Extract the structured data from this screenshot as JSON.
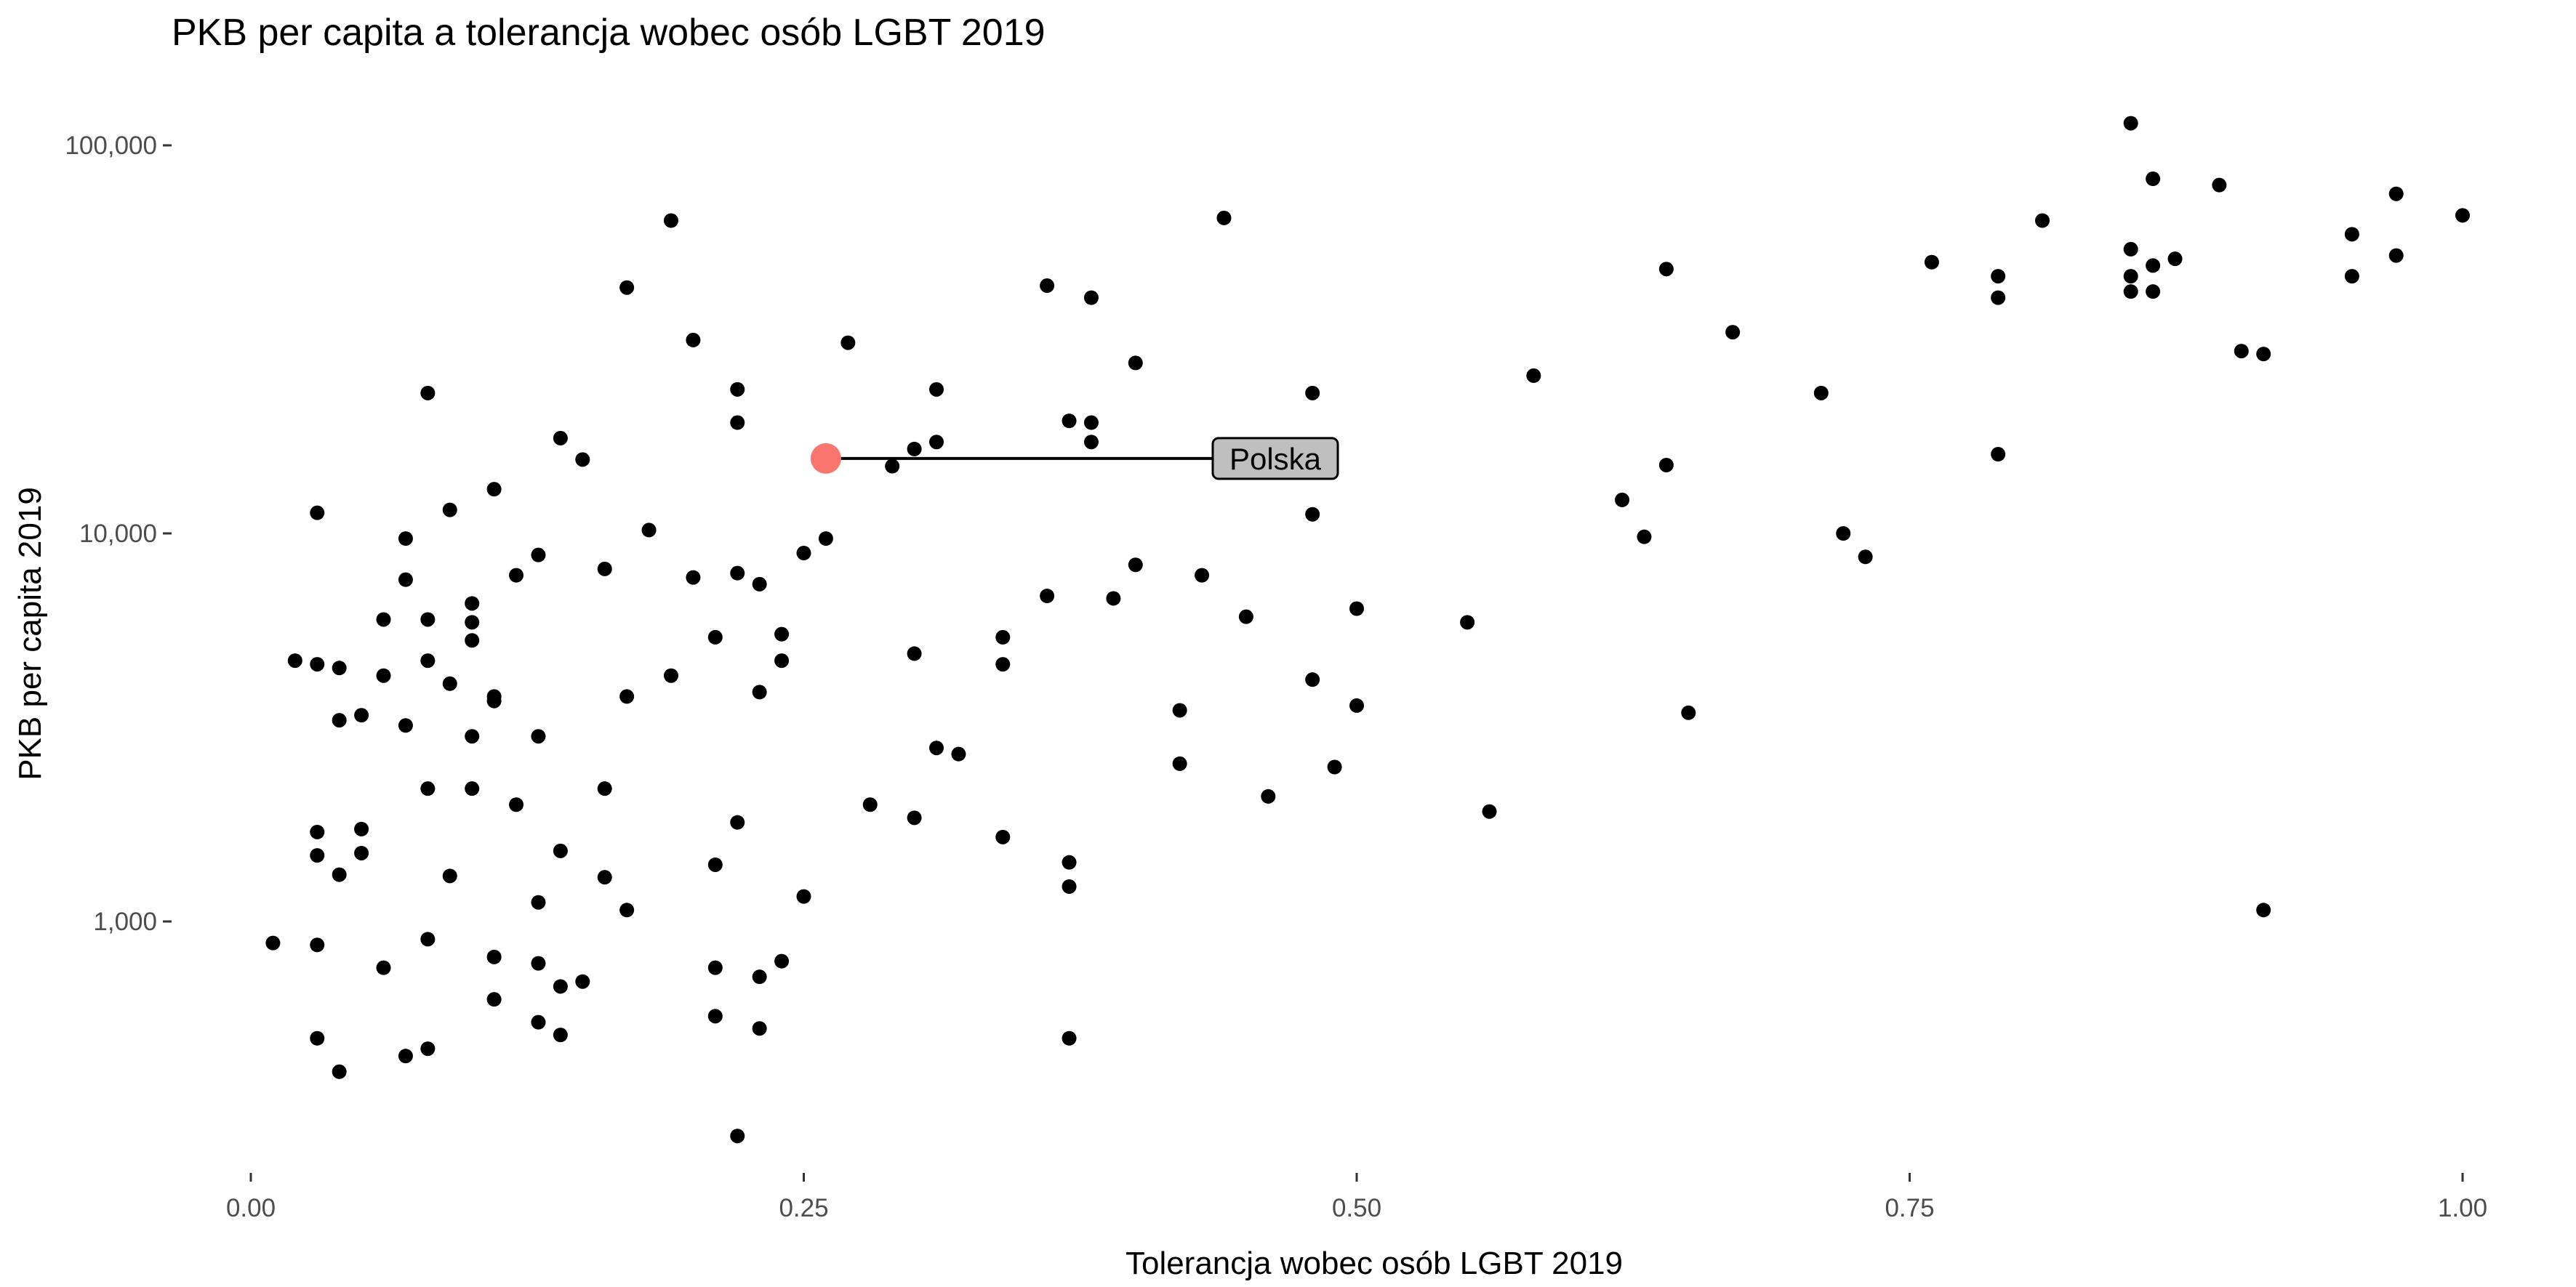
{
  "chart_data": {
    "type": "scatter",
    "title": "PKB per capita a tolerancja wobec osób LGBT 2019",
    "xlabel": "Tolerancja wobec osób LGBT 2019",
    "ylabel": "PKB per capita 2019",
    "x_scale": "linear",
    "y_scale": "log10",
    "xlim": [
      0.0,
      1.0
    ],
    "ylim": [
      250,
      115000
    ],
    "x_ticks": [
      0,
      0.25,
      0.5,
      0.75,
      1.0
    ],
    "x_tick_labels": [
      "0.00",
      "0.25",
      "0.50",
      "0.75",
      "1.00"
    ],
    "y_ticks": [
      1000,
      10000,
      100000
    ],
    "y_tick_labels": [
      "1,000",
      "10,000",
      "100,000"
    ],
    "grid": false,
    "legend": "none",
    "highlight": {
      "label": "Polska",
      "x": 0.26,
      "y": 15600,
      "color": "#F8766D"
    },
    "points": [
      [
        0.01,
        880
      ],
      [
        0.02,
        4700
      ],
      [
        0.03,
        11300
      ],
      [
        0.03,
        4600
      ],
      [
        0.03,
        1700
      ],
      [
        0.03,
        1480
      ],
      [
        0.03,
        870
      ],
      [
        0.03,
        500
      ],
      [
        0.04,
        4500
      ],
      [
        0.04,
        3300
      ],
      [
        0.04,
        1320
      ],
      [
        0.04,
        410
      ],
      [
        0.05,
        3400
      ],
      [
        0.05,
        1730
      ],
      [
        0.05,
        1500
      ],
      [
        0.06,
        6000
      ],
      [
        0.06,
        4300
      ],
      [
        0.06,
        760
      ],
      [
        0.07,
        9700
      ],
      [
        0.07,
        7600
      ],
      [
        0.07,
        3200
      ],
      [
        0.07,
        450
      ],
      [
        0.08,
        23000
      ],
      [
        0.08,
        6000
      ],
      [
        0.08,
        4700
      ],
      [
        0.08,
        2200
      ],
      [
        0.08,
        900
      ],
      [
        0.08,
        470
      ],
      [
        0.09,
        11500
      ],
      [
        0.09,
        4100
      ],
      [
        0.09,
        1310
      ],
      [
        0.1,
        6600
      ],
      [
        0.1,
        5900
      ],
      [
        0.1,
        5300
      ],
      [
        0.1,
        3000
      ],
      [
        0.1,
        2200
      ],
      [
        0.11,
        13000
      ],
      [
        0.11,
        3800
      ],
      [
        0.11,
        3700
      ],
      [
        0.11,
        810
      ],
      [
        0.11,
        630
      ],
      [
        0.12,
        2000
      ],
      [
        0.12,
        7800
      ],
      [
        0.13,
        8800
      ],
      [
        0.13,
        3000
      ],
      [
        0.13,
        1120
      ],
      [
        0.13,
        780
      ],
      [
        0.13,
        550
      ],
      [
        0.14,
        17600
      ],
      [
        0.14,
        1520
      ],
      [
        0.14,
        680
      ],
      [
        0.14,
        510
      ],
      [
        0.15,
        15500
      ],
      [
        0.15,
        700
      ],
      [
        0.16,
        8100
      ],
      [
        0.16,
        2200
      ],
      [
        0.16,
        1300
      ],
      [
        0.17,
        43000
      ],
      [
        0.17,
        3800
      ],
      [
        0.17,
        1070
      ],
      [
        0.18,
        10200
      ],
      [
        0.19,
        64000
      ],
      [
        0.19,
        4300
      ],
      [
        0.2,
        31500
      ],
      [
        0.2,
        7700
      ],
      [
        0.21,
        5400
      ],
      [
        0.21,
        1400
      ],
      [
        0.21,
        760
      ],
      [
        0.21,
        570
      ],
      [
        0.22,
        23500
      ],
      [
        0.22,
        19300
      ],
      [
        0.22,
        7900
      ],
      [
        0.22,
        1800
      ],
      [
        0.22,
        280
      ],
      [
        0.23,
        7400
      ],
      [
        0.23,
        3900
      ],
      [
        0.23,
        720
      ],
      [
        0.23,
        530
      ],
      [
        0.24,
        5500
      ],
      [
        0.24,
        4700
      ],
      [
        0.24,
        790
      ],
      [
        0.25,
        8900
      ],
      [
        0.25,
        1160
      ],
      [
        0.26,
        9700
      ],
      [
        0.27,
        31000
      ],
      [
        0.28,
        2000
      ],
      [
        0.29,
        14900
      ],
      [
        0.3,
        16500
      ],
      [
        0.3,
        4900
      ],
      [
        0.3,
        1850
      ],
      [
        0.31,
        23500
      ],
      [
        0.31,
        17200
      ],
      [
        0.31,
        2800
      ],
      [
        0.32,
        2700
      ],
      [
        0.34,
        5400
      ],
      [
        0.34,
        4600
      ],
      [
        0.34,
        1650
      ],
      [
        0.36,
        43500
      ],
      [
        0.36,
        6900
      ],
      [
        0.37,
        19500
      ],
      [
        0.37,
        1420
      ],
      [
        0.37,
        1230
      ],
      [
        0.37,
        500
      ],
      [
        0.38,
        40500
      ],
      [
        0.38,
        19300
      ],
      [
        0.38,
        17200
      ],
      [
        0.39,
        6800
      ],
      [
        0.4,
        27500
      ],
      [
        0.4,
        8300
      ],
      [
        0.42,
        3500
      ],
      [
        0.42,
        2550
      ],
      [
        0.43,
        7800
      ],
      [
        0.44,
        65000
      ],
      [
        0.45,
        6100
      ],
      [
        0.46,
        2100
      ],
      [
        0.48,
        23000
      ],
      [
        0.48,
        11200
      ],
      [
        0.48,
        4200
      ],
      [
        0.49,
        2500
      ],
      [
        0.5,
        6400
      ],
      [
        0.5,
        3600
      ],
      [
        0.55,
        5900
      ],
      [
        0.56,
        1920
      ],
      [
        0.58,
        25500
      ],
      [
        0.62,
        12200
      ],
      [
        0.63,
        9800
      ],
      [
        0.64,
        48000
      ],
      [
        0.64,
        15000
      ],
      [
        0.65,
        3450
      ],
      [
        0.67,
        33000
      ],
      [
        0.71,
        23000
      ],
      [
        0.72,
        10000
      ],
      [
        0.73,
        8700
      ],
      [
        0.76,
        50000
      ],
      [
        0.79,
        46000
      ],
      [
        0.79,
        40500
      ],
      [
        0.79,
        16000
      ],
      [
        0.81,
        64000
      ],
      [
        0.85,
        114000
      ],
      [
        0.85,
        54000
      ],
      [
        0.85,
        46000
      ],
      [
        0.85,
        42000
      ],
      [
        0.86,
        82000
      ],
      [
        0.86,
        49000
      ],
      [
        0.86,
        42000
      ],
      [
        0.87,
        51000
      ],
      [
        0.89,
        79000
      ],
      [
        0.9,
        29500
      ],
      [
        0.91,
        29000
      ],
      [
        0.91,
        1070
      ],
      [
        0.95,
        59000
      ],
      [
        0.95,
        46000
      ],
      [
        0.97,
        75000
      ],
      [
        0.97,
        52000
      ],
      [
        1.0,
        66000
      ]
    ]
  }
}
